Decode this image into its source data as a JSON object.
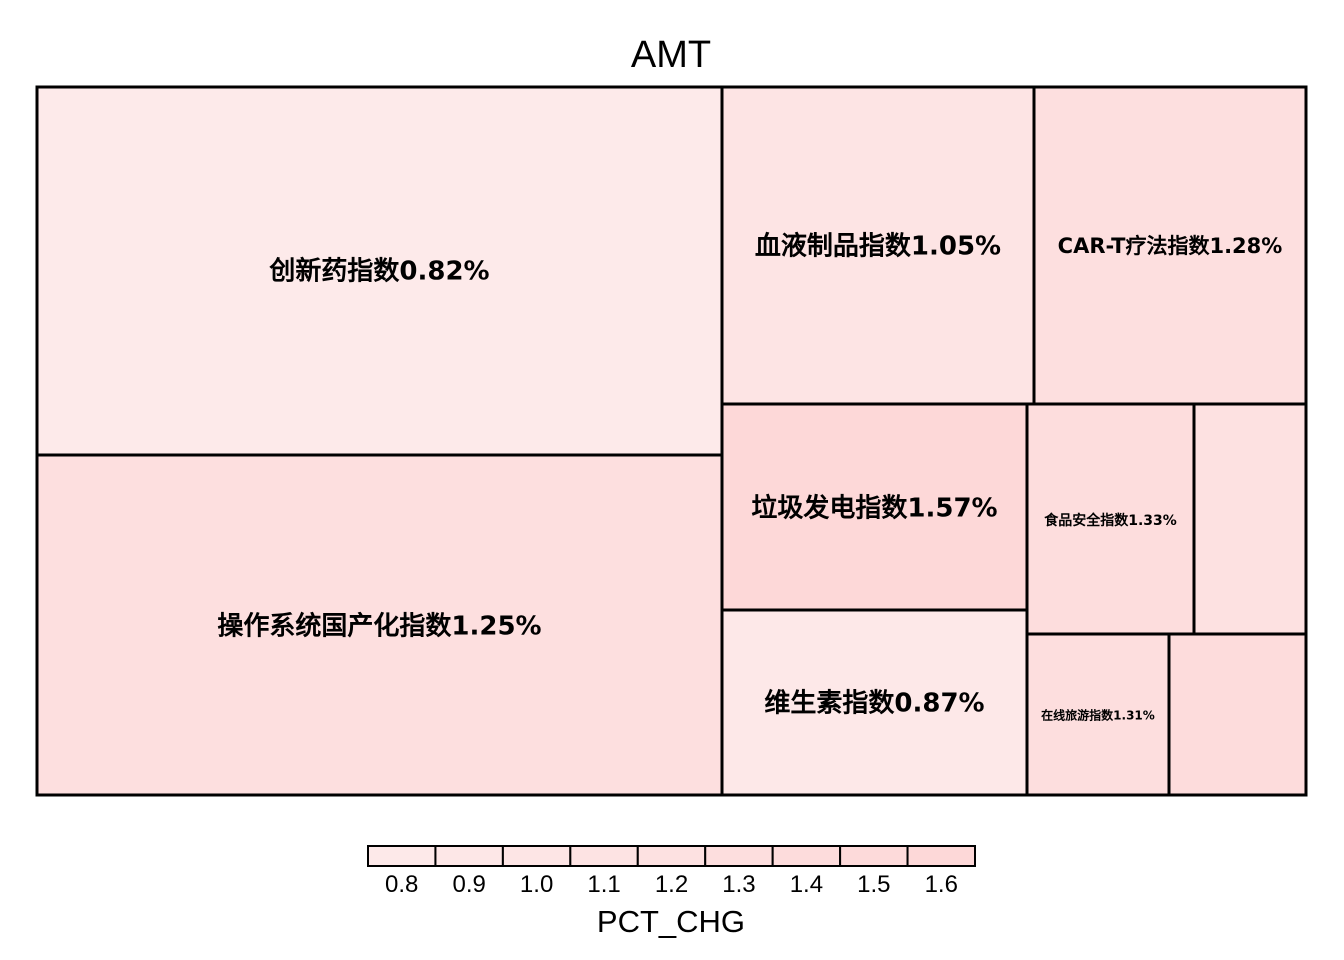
{
  "chart_data": {
    "type": "treemap",
    "title": "AMT",
    "legend": {
      "title": "PCT_CHG",
      "ticks": [
        "0.8",
        "0.9",
        "1.0",
        "1.1",
        "1.2",
        "1.3",
        "1.4",
        "1.5",
        "1.6"
      ],
      "range": [
        0.8,
        1.6
      ],
      "color_low": "#fdeaea",
      "color_high": "#fdd7d7"
    },
    "items": [
      {
        "name": "创新药指数",
        "pct_chg": 0.82,
        "label": "创新药指数0.82%"
      },
      {
        "name": "操作系统国产化指数",
        "pct_chg": 1.25,
        "label": "操作系统国产化指数1.25%"
      },
      {
        "name": "血液制品指数",
        "pct_chg": 1.05,
        "label": "血液制品指数1.05%"
      },
      {
        "name": "CAR-T疗法指数",
        "pct_chg": 1.28,
        "label": "CAR-T疗法指数1.28%"
      },
      {
        "name": "垃圾发电指数",
        "pct_chg": 1.57,
        "label": "垃圾发电指数1.57%"
      },
      {
        "name": "维生素指数",
        "pct_chg": 0.87,
        "label": "维生素指数0.87%"
      },
      {
        "name": "食品安全指数",
        "pct_chg": 1.33,
        "label": "食品安全指数1.33%"
      },
      {
        "name": "",
        "pct_chg": 1.2,
        "label": ""
      },
      {
        "name": "在线旅游指数",
        "pct_chg": 1.31,
        "label": "在线旅游指数1.31%"
      },
      {
        "name": "",
        "pct_chg": 1.4,
        "label": ""
      }
    ]
  }
}
